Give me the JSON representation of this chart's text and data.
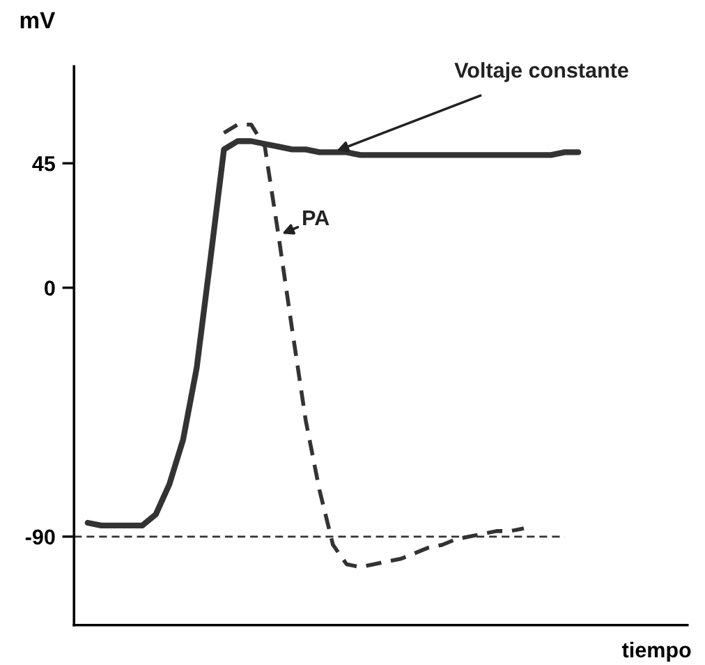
{
  "chart_data": {
    "type": "line",
    "xlabel": "tiempo",
    "ylabel": "mV",
    "categories": [
      null,
      null,
      null,
      null,
      null,
      null,
      null,
      null,
      null,
      null,
      null,
      null,
      null,
      null,
      null,
      null,
      null,
      null,
      null,
      null,
      null,
      null,
      null,
      null,
      null,
      null,
      null,
      null,
      null,
      null,
      null,
      null,
      null,
      null,
      null,
      null,
      null
    ],
    "series": [
      {
        "name": "Voltaje constante",
        "color": "#333333",
        "line_style": "solid",
        "values": [
          -85,
          -86,
          -86,
          -86,
          -86,
          -82,
          -71,
          -55,
          -29,
          10,
          50,
          53,
          53,
          52,
          51,
          50,
          50,
          49,
          49,
          49,
          48,
          48,
          48,
          48,
          48,
          48,
          48,
          48,
          48,
          48,
          48,
          48,
          48,
          48,
          48,
          49,
          49
        ]
      },
      {
        "name": "PA",
        "color": "#333333",
        "line_style": "dashed",
        "values": [
          null,
          null,
          null,
          null,
          null,
          null,
          null,
          null,
          null,
          null,
          56,
          59,
          59,
          51,
          19,
          -15,
          -48,
          -73,
          -93,
          -100,
          -101,
          -100,
          -99,
          -98,
          -96,
          -94,
          -93,
          -91,
          -90,
          -89,
          -88,
          -88,
          -87,
          null,
          null,
          null,
          null
        ]
      }
    ],
    "ylim": [
      -122,
      80
    ],
    "yticks": [
      45,
      0,
      -90
    ],
    "ref_lines": [
      {
        "axis": "y",
        "value": -90,
        "color": "#333333",
        "line_style": "dashed"
      }
    ],
    "tick_labels": "y",
    "grid": false,
    "legend": false
  }
}
